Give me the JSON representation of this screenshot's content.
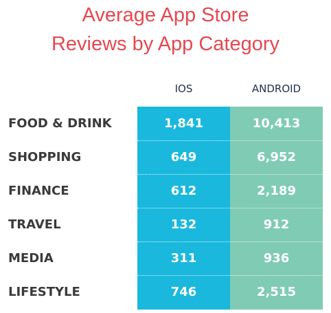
{
  "title": [
    "Average App Store",
    "Reviews by App Category"
  ],
  "table": {
    "columns": [
      "IOS",
      "ANDROID"
    ],
    "rows": [
      [
        "FOOD & DRINK",
        "1,841",
        "10,413"
      ],
      [
        "SHOPPING",
        "649",
        "6,952"
      ],
      [
        "FINANCE",
        "612",
        "2,189"
      ],
      [
        "TRAVEL",
        "132",
        "912"
      ],
      [
        "MEDIA",
        "311",
        "936"
      ],
      [
        "LIFESTYLE",
        "746",
        "2,515"
      ]
    ]
  }
}
